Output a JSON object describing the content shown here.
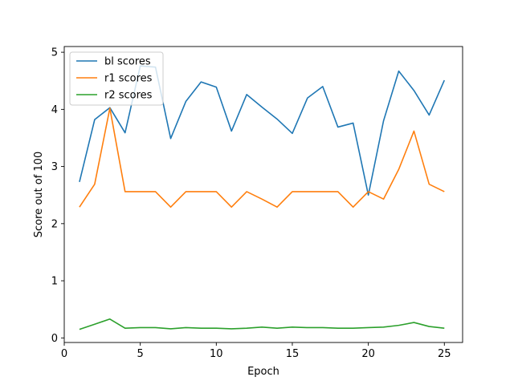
{
  "chart_data": {
    "type": "line",
    "title": "",
    "xlabel": "Epoch",
    "ylabel": "Score out of 100",
    "xlim": [
      0,
      26.2
    ],
    "ylim": [
      -0.08,
      5.1
    ],
    "xticks": [
      0,
      5,
      10,
      15,
      20,
      25
    ],
    "yticks": [
      0,
      1,
      2,
      3,
      4,
      5
    ],
    "legend_position": "top-left",
    "grid": false,
    "x": [
      1,
      2,
      3,
      4,
      5,
      6,
      7,
      8,
      9,
      10,
      11,
      12,
      13,
      14,
      15,
      16,
      17,
      18,
      19,
      20,
      21,
      22,
      23,
      24,
      25
    ],
    "series": [
      {
        "name": "bl scores",
        "color": "#1f77b4",
        "values": [
          2.73,
          3.82,
          4.03,
          3.59,
          4.76,
          4.74,
          3.49,
          4.14,
          4.48,
          4.39,
          3.62,
          4.26,
          4.04,
          3.83,
          3.58,
          4.2,
          4.4,
          3.69,
          3.76,
          2.5,
          3.8,
          4.67,
          4.33,
          3.9,
          4.51
        ]
      },
      {
        "name": "r1 scores",
        "color": "#ff7f0e",
        "values": [
          2.29,
          2.69,
          4.02,
          2.56,
          2.56,
          2.56,
          2.29,
          2.56,
          2.56,
          2.56,
          2.29,
          2.56,
          2.43,
          2.29,
          2.56,
          2.56,
          2.56,
          2.56,
          2.29,
          2.56,
          2.43,
          2.95,
          3.62,
          2.69,
          2.56
        ]
      },
      {
        "name": "r2 scores",
        "color": "#2ca02c",
        "values": [
          0.15,
          0.24,
          0.33,
          0.17,
          0.18,
          0.18,
          0.16,
          0.18,
          0.17,
          0.17,
          0.16,
          0.17,
          0.19,
          0.17,
          0.19,
          0.18,
          0.18,
          0.17,
          0.17,
          0.18,
          0.19,
          0.22,
          0.27,
          0.2,
          0.17
        ]
      }
    ]
  }
}
